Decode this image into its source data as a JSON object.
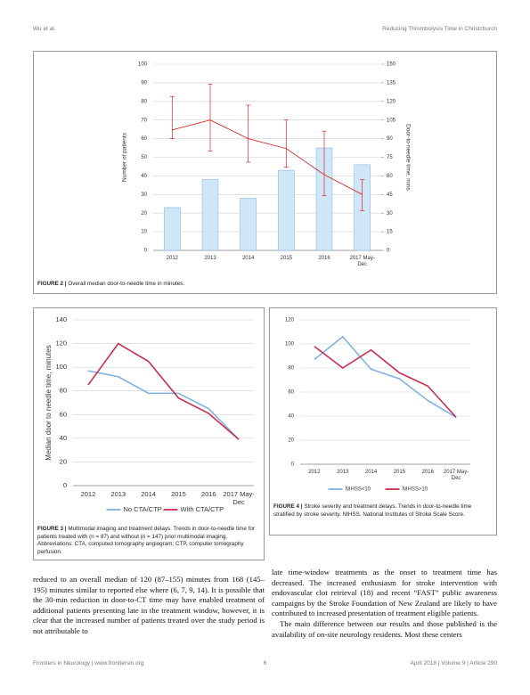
{
  "header": {
    "left": "Wu et al.",
    "right": "Reducing Thrombolysis Time in Christchurch"
  },
  "chart_data": [
    {
      "type": "bar_line",
      "caption_label": "FIGURE 2 |",
      "caption": "Overall median door-to-needle time in minutes.",
      "ylabel": "Number of patients",
      "y2label": "Door-to-needle time, mins",
      "categories": [
        "2012",
        "2013",
        "2014",
        "2015",
        "2016",
        "2017 May-Dec"
      ],
      "series": [
        {
          "type": "bar",
          "color": "#cfe6f7",
          "values": [
            23,
            38,
            28,
            43,
            55,
            46
          ]
        },
        {
          "type": "line",
          "axis": "y2",
          "color": "#d62a2a",
          "values": [
            97,
            105,
            90,
            82,
            61,
            45
          ],
          "lower": [
            90,
            80,
            71,
            67,
            44,
            32
          ],
          "upper": [
            124,
            134,
            117,
            105,
            96,
            57
          ]
        }
      ],
      "ylim": [
        0,
        100
      ],
      "yticks": [
        0,
        10,
        20,
        30,
        40,
        50,
        60,
        70,
        80,
        90,
        100
      ],
      "y2lim": [
        0,
        150
      ],
      "y2ticks": [
        0,
        15,
        30,
        45,
        60,
        75,
        90,
        105,
        120,
        135,
        150
      ],
      "grid": true
    },
    {
      "type": "line",
      "caption_label": "FIGURE 3 |",
      "caption": "Multimodal imaging and treatment delays. Trends in door-to-needle time for patients treated with (n = 87) and without (n = 147) prior multimodal imaging. Abbreviations: CTA, computed tomography angiogram; CTP, computer tomography perfusion.",
      "ylabel": "Median door to needle time, minutes",
      "categories": [
        "2012",
        "2013",
        "2014",
        "2015",
        "2016",
        "2017 May-Dec"
      ],
      "series": [
        {
          "name": "No CTA/CTP",
          "color": "#7fb1e3",
          "values": [
            97,
            92,
            78,
            78,
            65,
            39
          ]
        },
        {
          "name": "With CTA/CTP",
          "color": "#c8304f",
          "values": [
            85,
            120,
            105,
            74,
            61,
            39
          ]
        }
      ],
      "ylim": [
        0,
        140
      ],
      "yticks": [
        0,
        20,
        40,
        60,
        80,
        100,
        120,
        140
      ],
      "grid": true,
      "legend": "bottom"
    },
    {
      "type": "line",
      "caption_label": "FIGURE 4 |",
      "caption": "Stroke severity and treatment delays. Trends in door-to-needle time stratified by stroke severity. NIHSS, National Institutes of Stroke Scale Score.",
      "categories": [
        "2012",
        "2013",
        "2014",
        "2015",
        "2016",
        "2017 May-Dec"
      ],
      "series": [
        {
          "name": "NIHSS<10",
          "color": "#7fb1e3",
          "values": [
            87,
            106,
            79,
            71,
            53,
            39
          ]
        },
        {
          "name": "NIHSS>10",
          "color": "#c8304f",
          "values": [
            98,
            80,
            95,
            76,
            65,
            39
          ]
        }
      ],
      "ylim": [
        0,
        120
      ],
      "yticks": [
        0,
        20,
        40,
        60,
        80,
        100,
        120
      ],
      "grid": true,
      "legend": "bottom"
    }
  ],
  "body": {
    "left": [
      "reduced to an overall median of 120 (87–155) minutes from 168 (145–195) minutes similar to reported else where (6, 7, 9, 14). It is possible that the 30-min reduction in door-to-CT time may have enabled treatment of additional patients presenting late in the treatment window, however, it is clear that the increased number of patients treated over the study period is not attributable to"
    ],
    "right": [
      "late time-window treatments as the onset to treatment time has decreased. The increased enthusiasm for stroke intervention with endovascular clot retrieval (18) and recent “FAST” public awareness campaigns by the Stroke Foundation of New Zealand are likely to have contributed to increased presentation of treatment eligible patients.",
      "The main difference between our results and those published is the availability of on-site neurology residents. Most these centers"
    ]
  },
  "footer": {
    "left": "Frontiers in Neurology | www.frontiersin.org",
    "page": "6",
    "right": "April 2018 | Volume 9 | Article 290"
  }
}
